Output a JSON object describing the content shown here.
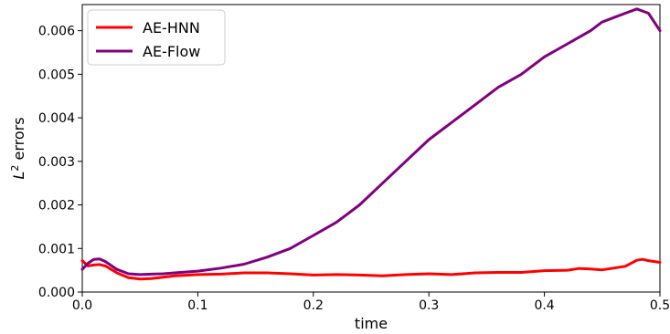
{
  "chart_data": {
    "type": "line",
    "xlabel": "time",
    "ylabel_main": "L",
    "ylabel_sup": "2",
    "ylabel_rest": " errors",
    "xlim": [
      0.0,
      0.5
    ],
    "ylim": [
      0.0,
      0.0066
    ],
    "x_ticks": [
      0.0,
      0.1,
      0.2,
      0.3,
      0.4,
      0.5
    ],
    "x_tick_labels": [
      "0.0",
      "0.1",
      "0.2",
      "0.3",
      "0.4",
      "0.5"
    ],
    "y_ticks": [
      0.0,
      0.001,
      0.002,
      0.003,
      0.004,
      0.005,
      0.006
    ],
    "y_tick_labels": [
      "0.000",
      "0.001",
      "0.002",
      "0.003",
      "0.004",
      "0.005",
      "0.006"
    ],
    "grid": false,
    "legend_position": "top-left",
    "series": [
      {
        "name": "AE-HNN",
        "color": "#ff0000",
        "x": [
          0.0,
          0.005,
          0.01,
          0.015,
          0.02,
          0.03,
          0.04,
          0.05,
          0.06,
          0.07,
          0.08,
          0.1,
          0.12,
          0.14,
          0.16,
          0.18,
          0.2,
          0.22,
          0.24,
          0.26,
          0.28,
          0.3,
          0.32,
          0.34,
          0.36,
          0.38,
          0.4,
          0.42,
          0.43,
          0.44,
          0.45,
          0.46,
          0.47,
          0.48,
          0.485,
          0.49,
          0.5
        ],
        "y": [
          0.00072,
          0.0006,
          0.00062,
          0.00063,
          0.0006,
          0.00044,
          0.00033,
          0.0003,
          0.00031,
          0.00034,
          0.00037,
          0.0004,
          0.00041,
          0.00044,
          0.00044,
          0.00042,
          0.00039,
          0.0004,
          0.00039,
          0.00037,
          0.0004,
          0.00042,
          0.0004,
          0.00044,
          0.00045,
          0.00045,
          0.00049,
          0.0005,
          0.00054,
          0.00053,
          0.00051,
          0.00055,
          0.00059,
          0.00073,
          0.00075,
          0.00072,
          0.00068
        ]
      },
      {
        "name": "AE-Flow",
        "color": "#800080",
        "x": [
          0.0,
          0.005,
          0.01,
          0.015,
          0.02,
          0.03,
          0.04,
          0.05,
          0.06,
          0.07,
          0.08,
          0.1,
          0.12,
          0.14,
          0.16,
          0.18,
          0.2,
          0.22,
          0.24,
          0.26,
          0.28,
          0.3,
          0.32,
          0.34,
          0.36,
          0.38,
          0.4,
          0.42,
          0.44,
          0.45,
          0.46,
          0.47,
          0.48,
          0.49,
          0.5
        ],
        "y": [
          0.00052,
          0.00066,
          0.00075,
          0.00076,
          0.0007,
          0.00052,
          0.00042,
          0.0004,
          0.00041,
          0.00042,
          0.00044,
          0.00048,
          0.00055,
          0.00064,
          0.0008,
          0.001,
          0.0013,
          0.0016,
          0.002,
          0.0025,
          0.003,
          0.0035,
          0.0039,
          0.0043,
          0.0047,
          0.005,
          0.0054,
          0.0057,
          0.006,
          0.0062,
          0.0063,
          0.0064,
          0.0065,
          0.0064,
          0.006
        ]
      }
    ]
  }
}
